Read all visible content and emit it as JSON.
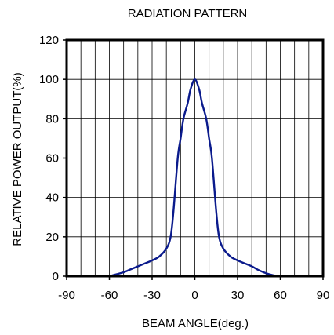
{
  "chart_data": {
    "type": "line",
    "title": "RADIATION PATTERN",
    "xlabel": "BEAM ANGLE(deg.)",
    "ylabel": "RELATIVE POWER OUTPUT(%)",
    "xlim": [
      -90,
      90
    ],
    "ylim": [
      0,
      120
    ],
    "xticks": [
      "-90",
      "-60",
      "-30",
      "0",
      "30",
      "60",
      "90"
    ],
    "yticks": [
      "0",
      "20",
      "40",
      "60",
      "80",
      "100",
      "120"
    ],
    "x_grid_step": 10,
    "y_grid_step": 20,
    "grid": true,
    "series": [
      {
        "color": "#0a1a8c",
        "x": [
          -60,
          -55,
          -50,
          -45,
          -40,
          -35,
          -30,
          -25,
          -20,
          -17,
          -15,
          -12,
          -10,
          -8,
          -5,
          -3,
          0,
          3,
          5,
          8,
          10,
          12,
          15,
          17,
          20,
          25,
          30,
          35,
          40,
          45,
          50,
          55,
          60
        ],
        "y": [
          0,
          1,
          2,
          3.5,
          5,
          6.5,
          8,
          10,
          14,
          20,
          33,
          60,
          70,
          80,
          88,
          95,
          100,
          95,
          88,
          80,
          70,
          60,
          33,
          20,
          14,
          10,
          8,
          6.5,
          5,
          3,
          1.5,
          0.5,
          0
        ]
      }
    ]
  }
}
